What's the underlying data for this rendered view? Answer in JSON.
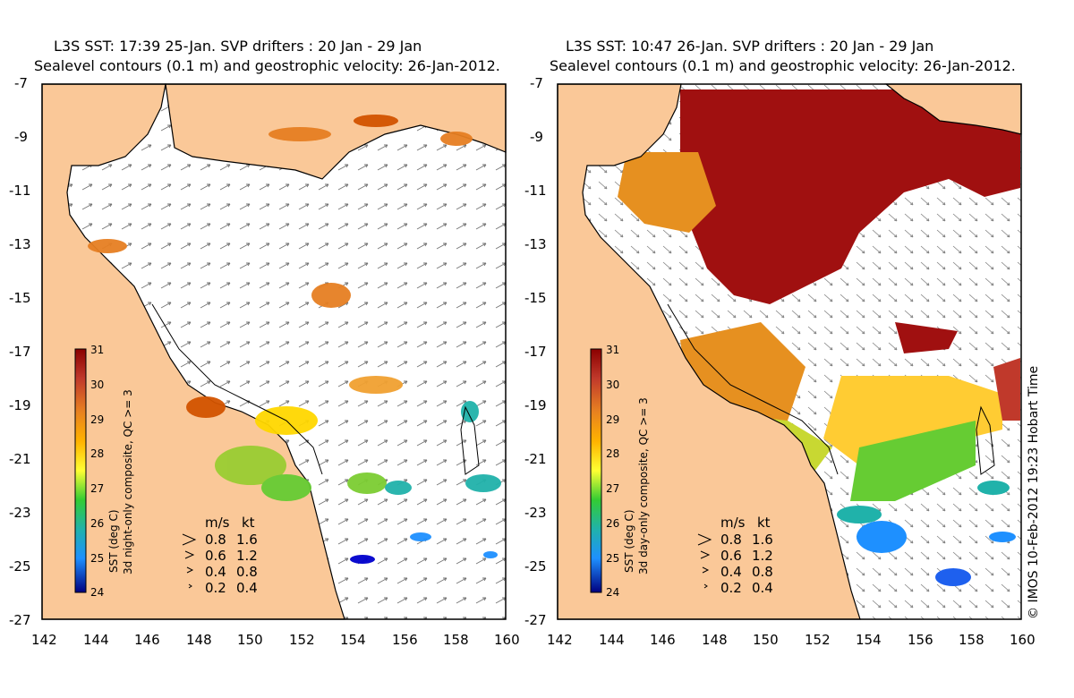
{
  "panels": [
    {
      "title_line1": "L3S SST: 17:39 25-Jan. SVP drifters : 20 Jan - 29 Jan",
      "title_line2": "Sealevel contours (0.1 m) and geostrophic velocity: 26-Jan-2012.",
      "colorbar_label": "SST (deg C)",
      "colorbar_sublabel": "3d night-only composite, QC >= 3",
      "coverage": "sparse"
    },
    {
      "title_line1": "L3S SST: 10:47 26-Jan. SVP drifters : 20 Jan - 29 Jan",
      "title_line2": "Sealevel contours (0.1 m) and geostrophic velocity: 26-Jan-2012.",
      "colorbar_label": "SST (deg C)",
      "colorbar_sublabel": "3d day-only composite, QC >= 3",
      "coverage": "dense"
    }
  ],
  "axes": {
    "x_ticks": [
      "142",
      "144",
      "146",
      "148",
      "150",
      "152",
      "154",
      "156",
      "158",
      "160"
    ],
    "y_ticks": [
      "-7",
      "-9",
      "-11",
      "-13",
      "-15",
      "-17",
      "-19",
      "-21",
      "-23",
      "-25",
      "-27"
    ],
    "lon_range": [
      142,
      160
    ],
    "lat_range": [
      -27,
      -7
    ]
  },
  "colorbar": {
    "ticks": [
      "31",
      "30",
      "29",
      "28",
      "27",
      "26",
      "25",
      "24"
    ],
    "stops": [
      "#8b0000",
      "#b22222",
      "#d2691e",
      "#ff8c00",
      "#ffd700",
      "#ffff00",
      "#9acd32",
      "#32cd32",
      "#20b2aa",
      "#1e90ff",
      "#0000cd",
      "#000080"
    ]
  },
  "velocity_legend": {
    "header_ms": "m/s",
    "header_kt": "kt",
    "rows": [
      {
        "ms": "0.8",
        "kt": "1.6"
      },
      {
        "ms": "0.6",
        "kt": "1.2"
      },
      {
        "ms": "0.4",
        "kt": "0.8"
      },
      {
        "ms": "0.2",
        "kt": "0.4"
      }
    ]
  },
  "credit": "© IMOS 10-Feb-2012 19:23 Hobart Time",
  "colors": {
    "land": "#fac898",
    "ocean": "#ffffff",
    "coast": "#000000"
  }
}
